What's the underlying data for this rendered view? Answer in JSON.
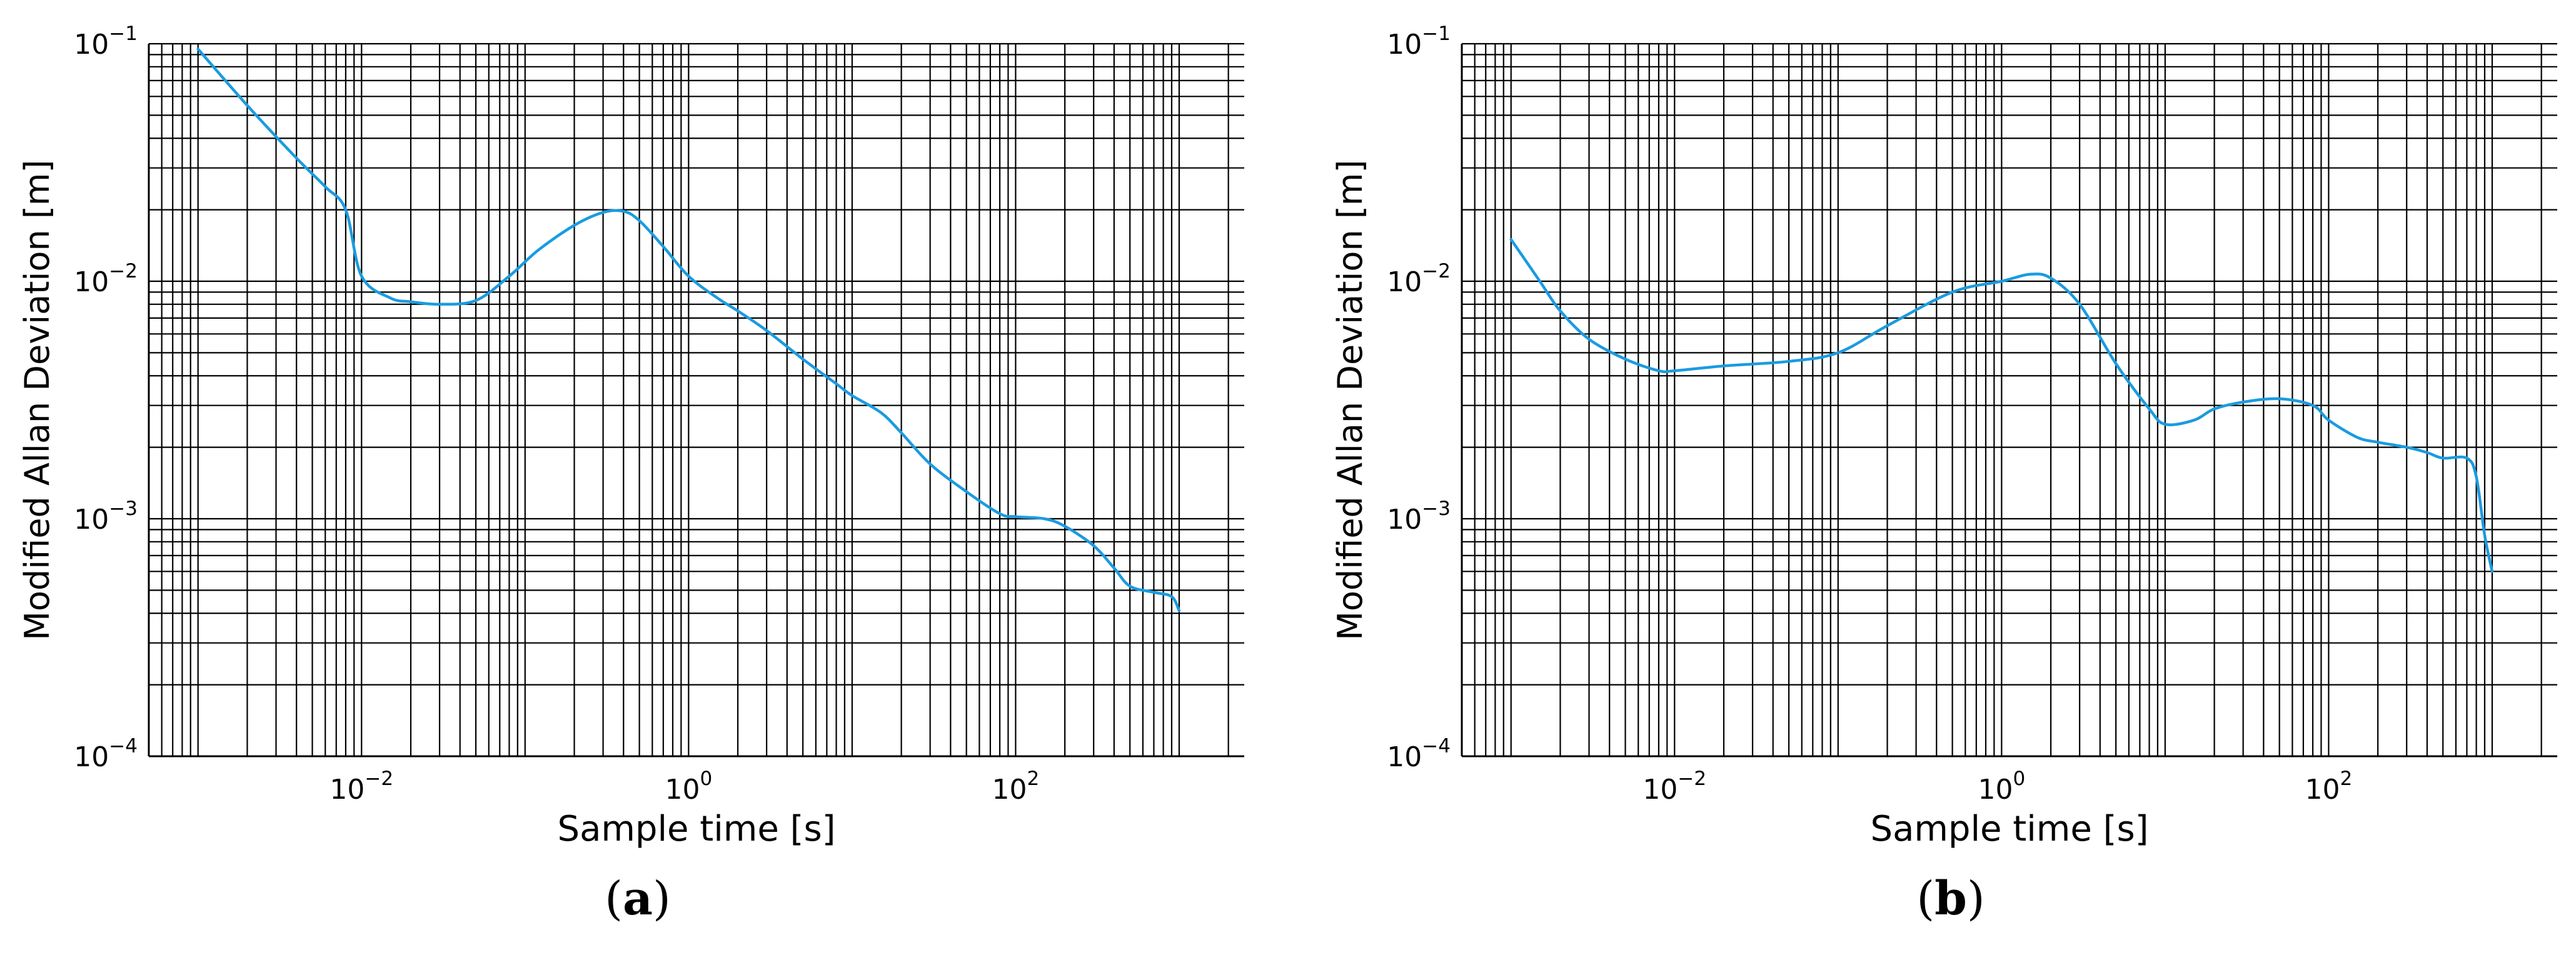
{
  "chart_data": [
    {
      "type": "line",
      "panel_label": "a",
      "xlabel": "Sample time [s]",
      "ylabel": "Modified Allan Deviation [m]",
      "x_scale": "log",
      "y_scale": "log",
      "xlim": [
        0.0005,
        2500
      ],
      "ylim": [
        0.0001,
        0.1
      ],
      "x_ticks": [
        {
          "value": 0.01,
          "base": "10",
          "exp": "−2"
        },
        {
          "value": 1,
          "base": "10",
          "exp": "0"
        },
        {
          "value": 100,
          "base": "10",
          "exp": "2"
        }
      ],
      "y_ticks": [
        {
          "value": 0.0001,
          "base": "10",
          "exp": "−4"
        },
        {
          "value": 0.001,
          "base": "10",
          "exp": "−3"
        },
        {
          "value": 0.01,
          "base": "10",
          "exp": "−2"
        },
        {
          "value": 0.1,
          "base": "10",
          "exp": "−1"
        }
      ],
      "grid": true,
      "line_color": "#1a9be0",
      "x": [
        0.001,
        0.002,
        0.004,
        0.006,
        0.008,
        0.01,
        0.015,
        0.02,
        0.03,
        0.05,
        0.08,
        0.12,
        0.2,
        0.3,
        0.4,
        0.5,
        0.7,
        1,
        1.5,
        2,
        3,
        5,
        8,
        10,
        15,
        20,
        30,
        50,
        80,
        100,
        150,
        200,
        300,
        400,
        500,
        700,
        900,
        1000
      ],
      "y": [
        0.095,
        0.055,
        0.033,
        0.025,
        0.02,
        0.0105,
        0.0085,
        0.0082,
        0.008,
        0.0083,
        0.0105,
        0.0135,
        0.0172,
        0.0195,
        0.0197,
        0.018,
        0.014,
        0.0105,
        0.0085,
        0.0075,
        0.0062,
        0.0047,
        0.0037,
        0.0033,
        0.0028,
        0.0023,
        0.0017,
        0.0013,
        0.00105,
        0.00102,
        0.001,
        0.00093,
        0.00077,
        0.00062,
        0.00052,
        0.00049,
        0.00047,
        0.00041
      ]
    },
    {
      "type": "line",
      "panel_label": "b",
      "xlabel": "Sample time [s]",
      "ylabel": "Modified Allan Deviation [m]",
      "x_scale": "log",
      "y_scale": "log",
      "xlim": [
        0.0005,
        2500
      ],
      "ylim": [
        0.0001,
        0.1
      ],
      "x_ticks": [
        {
          "value": 0.01,
          "base": "10",
          "exp": "−2"
        },
        {
          "value": 1,
          "base": "10",
          "exp": "0"
        },
        {
          "value": 100,
          "base": "10",
          "exp": "2"
        }
      ],
      "y_ticks": [
        {
          "value": 0.0001,
          "base": "10",
          "exp": "−4"
        },
        {
          "value": 0.001,
          "base": "10",
          "exp": "−3"
        },
        {
          "value": 0.01,
          "base": "10",
          "exp": "−2"
        },
        {
          "value": 0.1,
          "base": "10",
          "exp": "−1"
        }
      ],
      "grid": true,
      "line_color": "#1a9be0",
      "x": [
        0.001,
        0.0015,
        0.002,
        0.003,
        0.005,
        0.008,
        0.01,
        0.02,
        0.05,
        0.1,
        0.2,
        0.5,
        1,
        1.5,
        2,
        3,
        5,
        8,
        10,
        15,
        20,
        30,
        50,
        80,
        100,
        150,
        200,
        300,
        400,
        500,
        700,
        800,
        900,
        1000
      ],
      "y": [
        0.015,
        0.01,
        0.0075,
        0.0057,
        0.0047,
        0.0042,
        0.0042,
        0.0044,
        0.0046,
        0.005,
        0.0065,
        0.009,
        0.01,
        0.0107,
        0.0103,
        0.008,
        0.0045,
        0.0029,
        0.0025,
        0.0026,
        0.0029,
        0.0031,
        0.0032,
        0.003,
        0.0026,
        0.0022,
        0.0021,
        0.002,
        0.0019,
        0.0018,
        0.0018,
        0.0015,
        0.00085,
        0.0006
      ]
    }
  ],
  "captions": {
    "a": "a",
    "b": "b"
  }
}
